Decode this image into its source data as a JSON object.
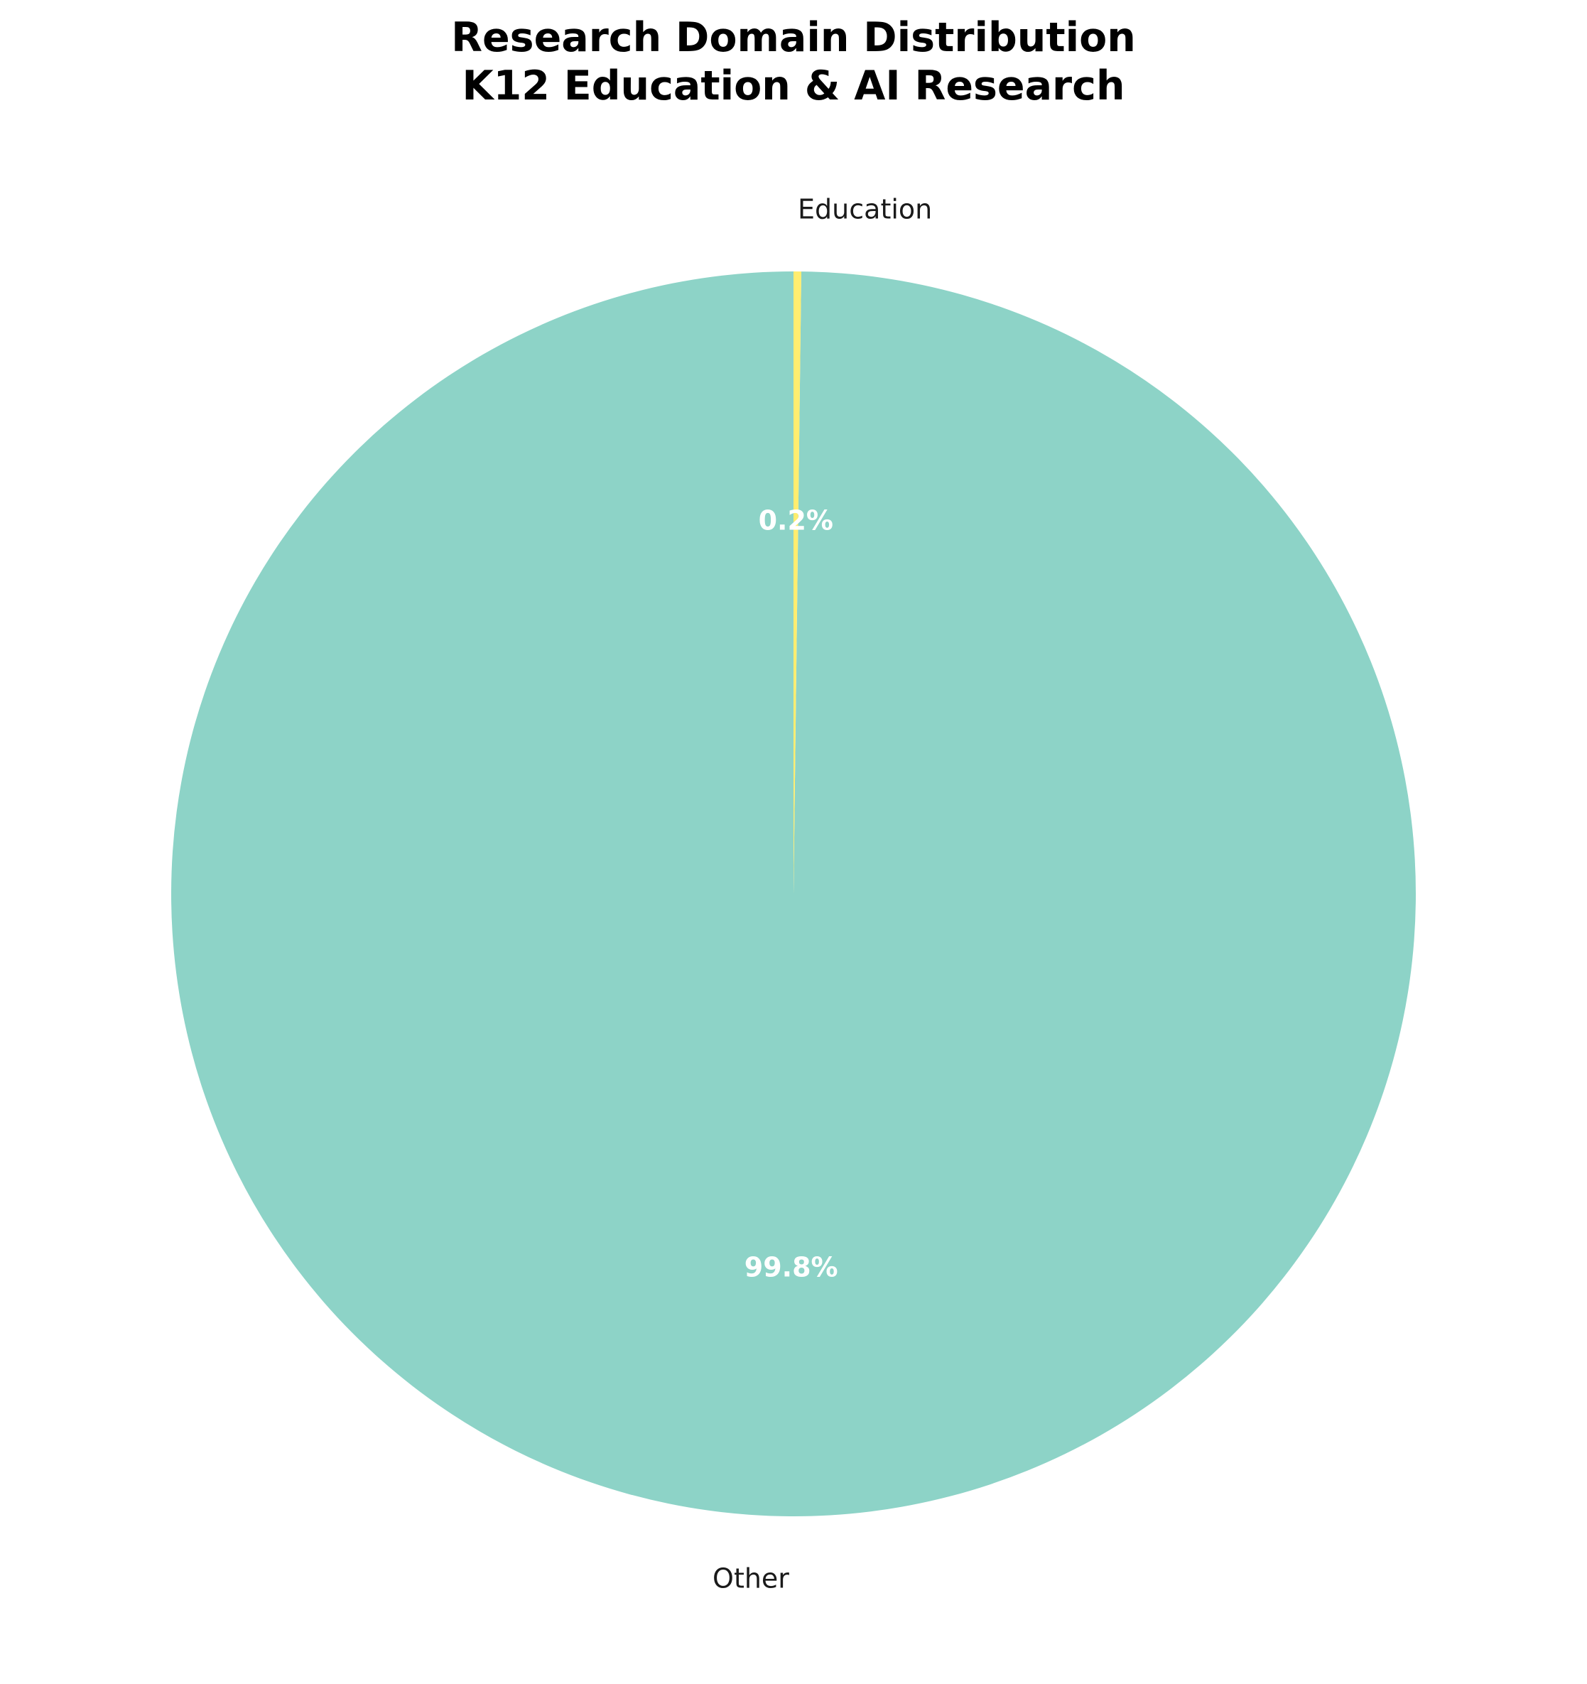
{
  "chart_data": {
    "type": "pie",
    "title": "Research Domain Distribution\nK12 Education & AI Research",
    "title_lines": [
      "Research Domain Distribution",
      "K12 Education & AI Research"
    ],
    "start_angle_deg": 90,
    "direction": "counterclockwise",
    "slices": [
      {
        "label": "Other",
        "value": 99.8,
        "pct_label": "99.8%",
        "color": "#8dd3c7"
      },
      {
        "label": "Education",
        "value": 0.2,
        "pct_label": "0.2%",
        "color": "#ffed6f"
      }
    ]
  }
}
